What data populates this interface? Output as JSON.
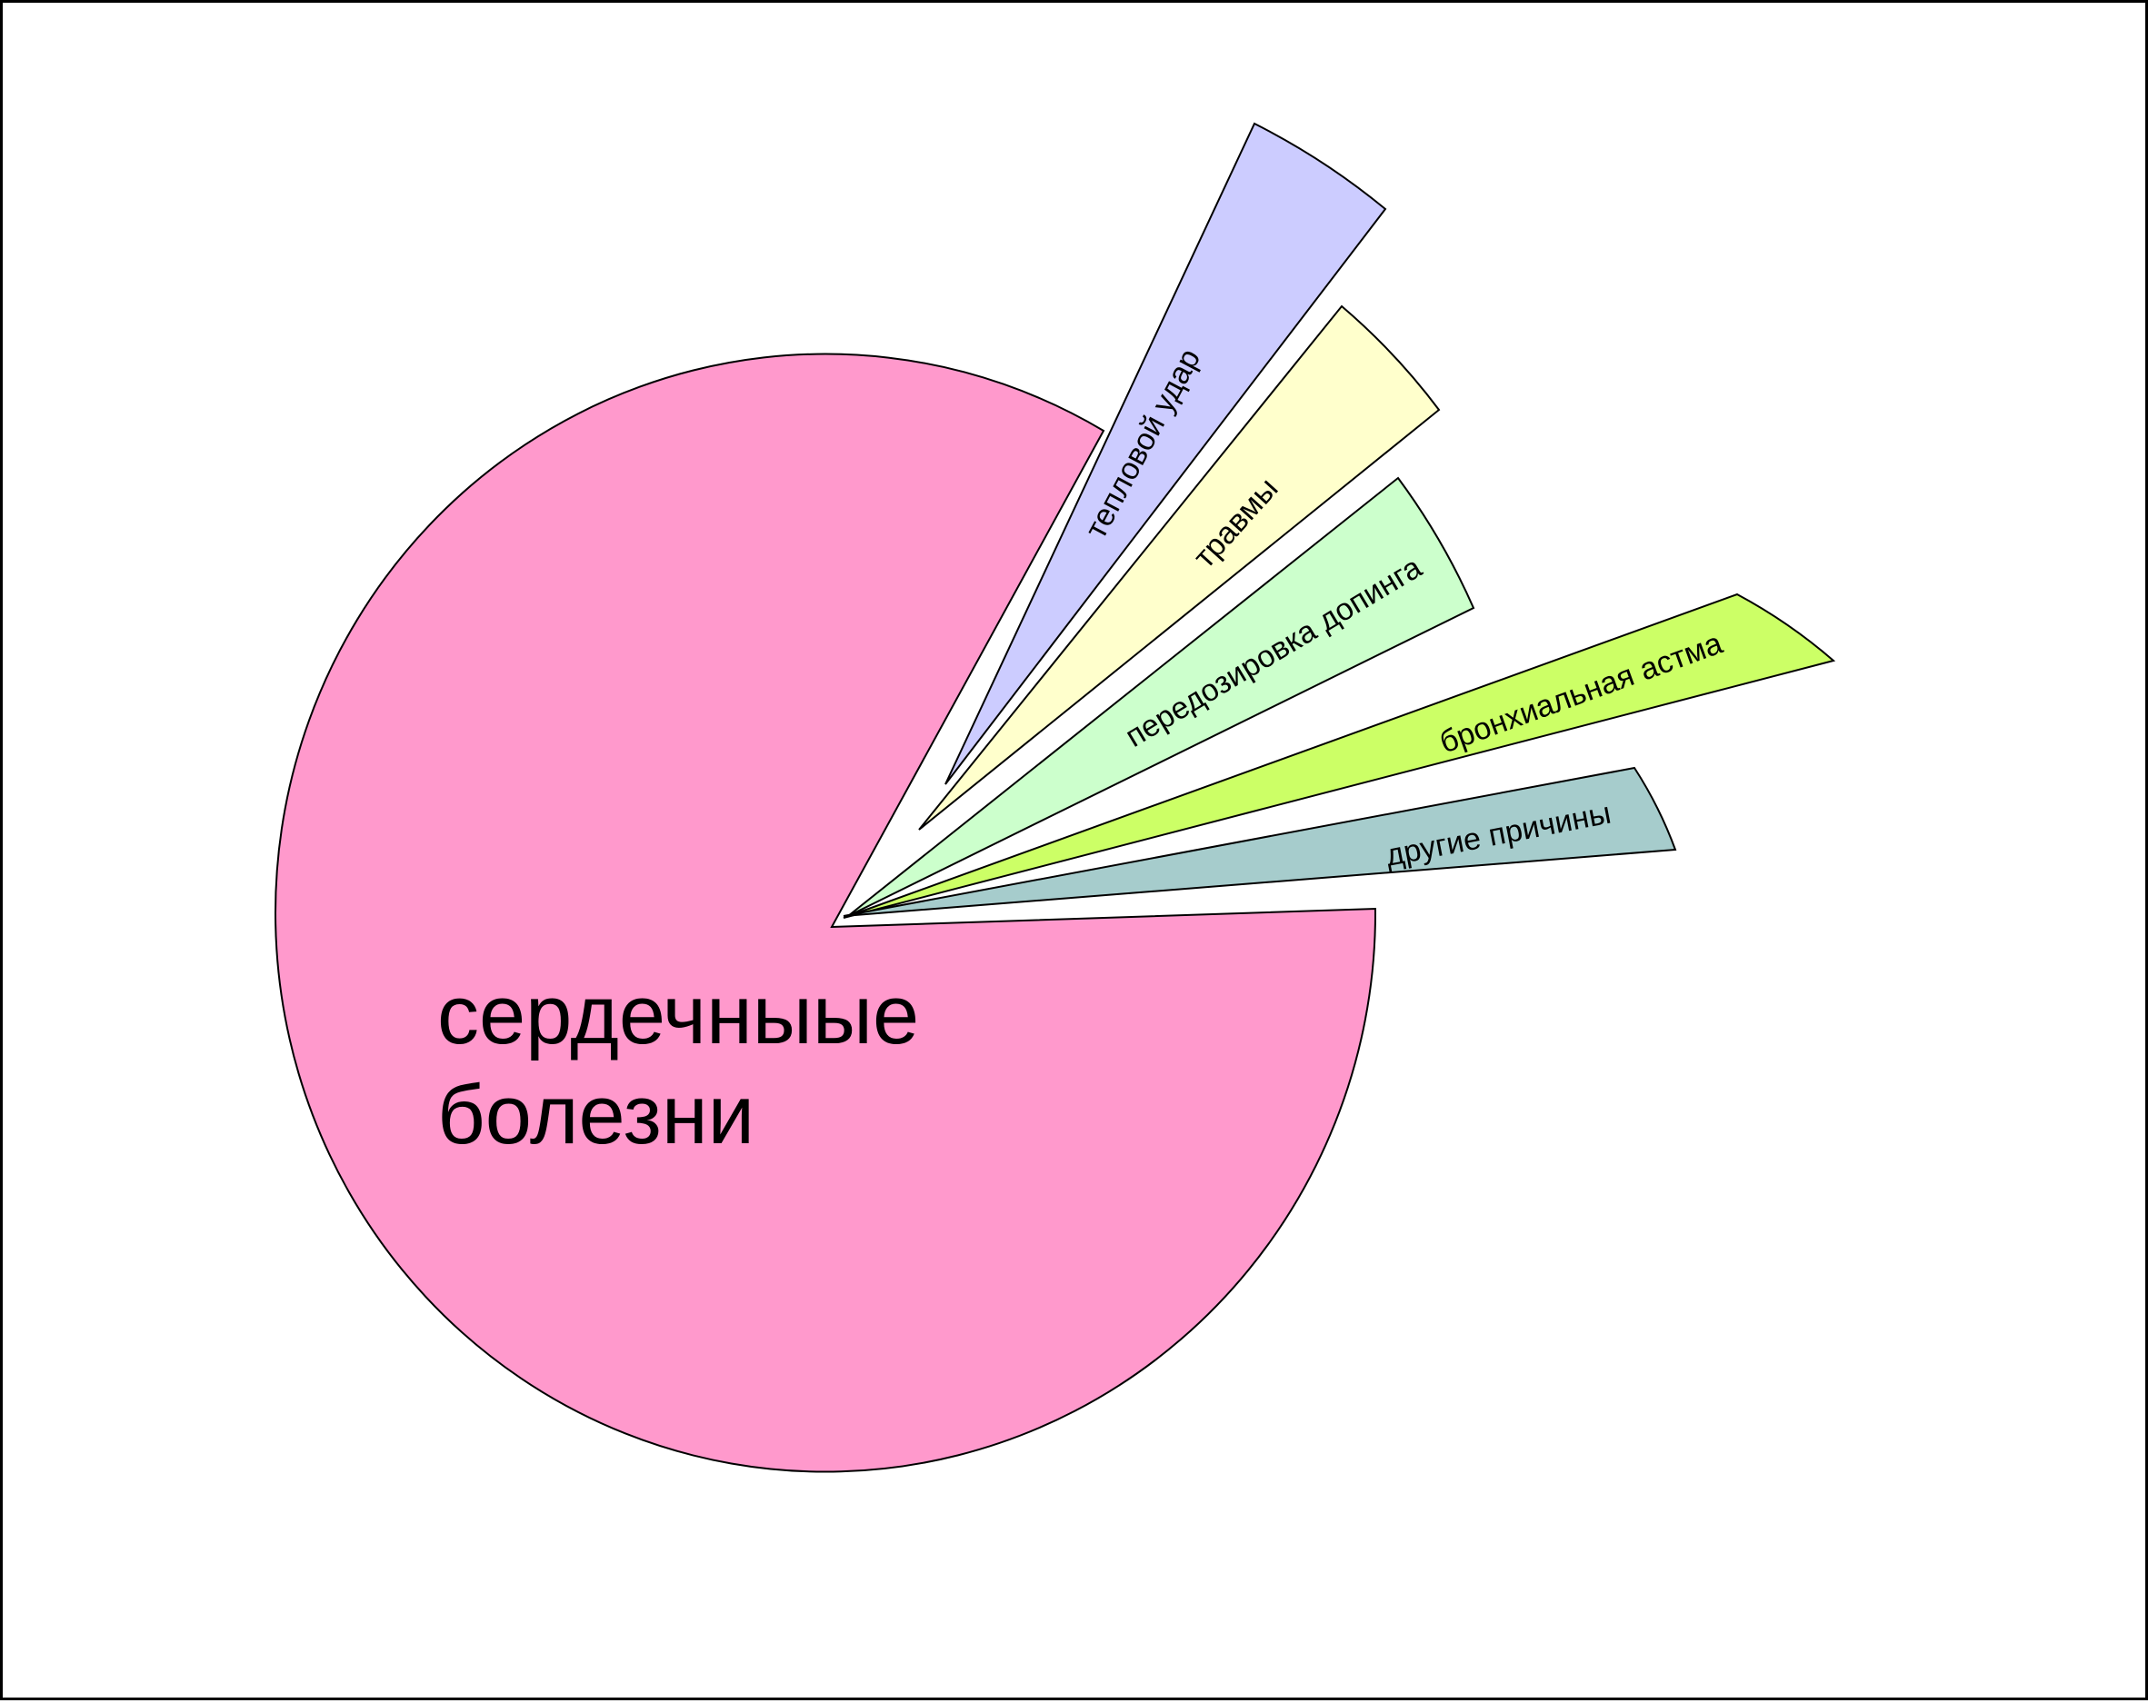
{
  "chart_data": {
    "type": "pie",
    "title": "",
    "exploded": true,
    "legend": "none",
    "slices": [
      {
        "label": "сердечныые болезни",
        "label_lines": [
          "сердечныые",
          "болезни"
        ],
        "value": 81.0,
        "color": "#ff99cc"
      },
      {
        "label": "тепловой удар",
        "value": 4.8,
        "color": "#ccccff"
      },
      {
        "label": "травмы",
        "value": 4.0,
        "color": "#ffffcc"
      },
      {
        "label": "передозировка допинга",
        "value": 3.6,
        "color": "#ccffcc"
      },
      {
        "label": "бронхиальная астма",
        "value": 3.3,
        "color": "#ccff66"
      },
      {
        "label": "другие причины",
        "value": 3.3,
        "color": "#a6cccc"
      }
    ]
  }
}
